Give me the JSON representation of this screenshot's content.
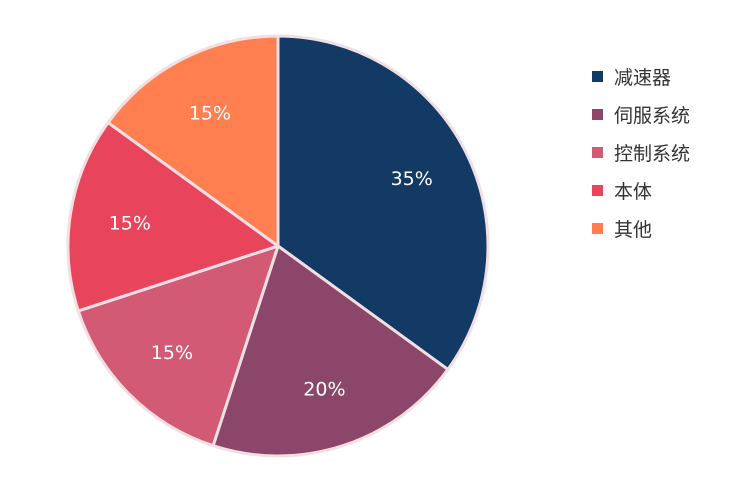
{
  "chart_data": {
    "type": "pie",
    "categories": [
      "减速器",
      "伺服系统",
      "控制系统",
      "本体",
      "其他"
    ],
    "values": [
      35,
      20,
      15,
      15,
      15
    ],
    "labels": [
      "35%",
      "20%",
      "15%",
      "15%",
      "15%"
    ],
    "colors": [
      "#123a64",
      "#8b4669",
      "#d25a74",
      "#e8455d",
      "#ff7f50"
    ],
    "label_colors": [
      "#ffffff",
      "#ffffff",
      "#ffffff",
      "#ffffff",
      "#ffffff"
    ],
    "legend_position": "right",
    "start_angle_deg": 0,
    "direction": "clockwise"
  }
}
